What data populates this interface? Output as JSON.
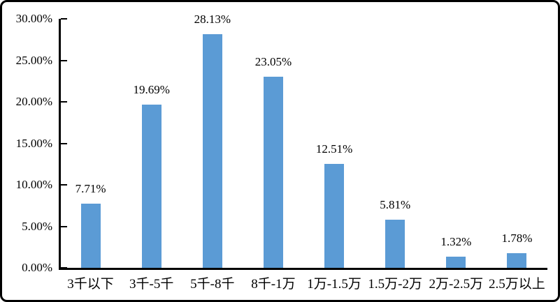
{
  "chart_data": {
    "type": "bar",
    "title": "",
    "categories": [
      "3千以下",
      "3千-5千",
      "5千-8千",
      "8千-1万",
      "1万-1.5万",
      "1.5万-2万",
      "2万-2.5万",
      "2.5万以上"
    ],
    "values": [
      7.71,
      19.69,
      28.13,
      23.05,
      12.51,
      5.81,
      1.32,
      1.78
    ],
    "value_labels": [
      "7.71%",
      "19.69%",
      "28.13%",
      "23.05%",
      "12.51%",
      "5.81%",
      "1.32%",
      "1.78%"
    ],
    "xlabel": "",
    "ylabel": "",
    "y_axis": {
      "min": 0,
      "max": 30,
      "step": 5,
      "tick_labels": [
        "30.00%",
        "25.00%",
        "20.00%",
        "15.00%",
        "10.00%",
        "5.00%",
        "0.00%"
      ],
      "tick_values": [
        30,
        25,
        20,
        15,
        10,
        5,
        0
      ]
    },
    "grid": false,
    "legend": false,
    "colors": {
      "bar": "#5B9BD5",
      "axis": "#000000",
      "text": "#000000",
      "frame_border": "#000000",
      "background": "#FFFFFF"
    }
  }
}
